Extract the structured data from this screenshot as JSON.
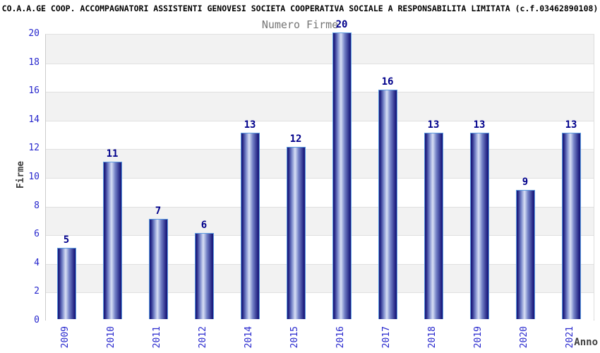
{
  "header": {
    "title": "CO.A.A.GE COOP. ACCOMPAGNATORI ASSISTENTI GENOVESI SOCIETA COOPERATIVA SOCIALE A RESPONSABILITA LIMITATA (c.f.03462890108)"
  },
  "chart_data": {
    "type": "bar",
    "title": "Numero Firme",
    "xlabel": "Anno",
    "ylabel": "Firme",
    "categories": [
      "2009",
      "2010",
      "2011",
      "2012",
      "2014",
      "2015",
      "2016",
      "2017",
      "2018",
      "2019",
      "2020",
      "2021"
    ],
    "values": [
      5,
      11,
      7,
      6,
      13,
      12,
      20,
      16,
      13,
      13,
      9,
      13
    ],
    "ylim": [
      0,
      20
    ],
    "ytick_step": 2,
    "legend": "none",
    "grid": "horizontal-bands-every-2-units"
  },
  "colors": {
    "band_gray": "#f2f2f2",
    "band_white": "#ffffff",
    "gridline": "#e0e0e0",
    "bar_edge_dark": "#1c1c7e",
    "bar_mid": "#7583c8",
    "bar_highlight": "#d8e0f5",
    "bar_border": "#5c9be0",
    "tick_label_blue": "#2727cd",
    "value_label_navy": "#00008b",
    "axis_title_gray": "#3f3f3f",
    "subtitle_gray": "#757575",
    "title_black": "#000000"
  }
}
